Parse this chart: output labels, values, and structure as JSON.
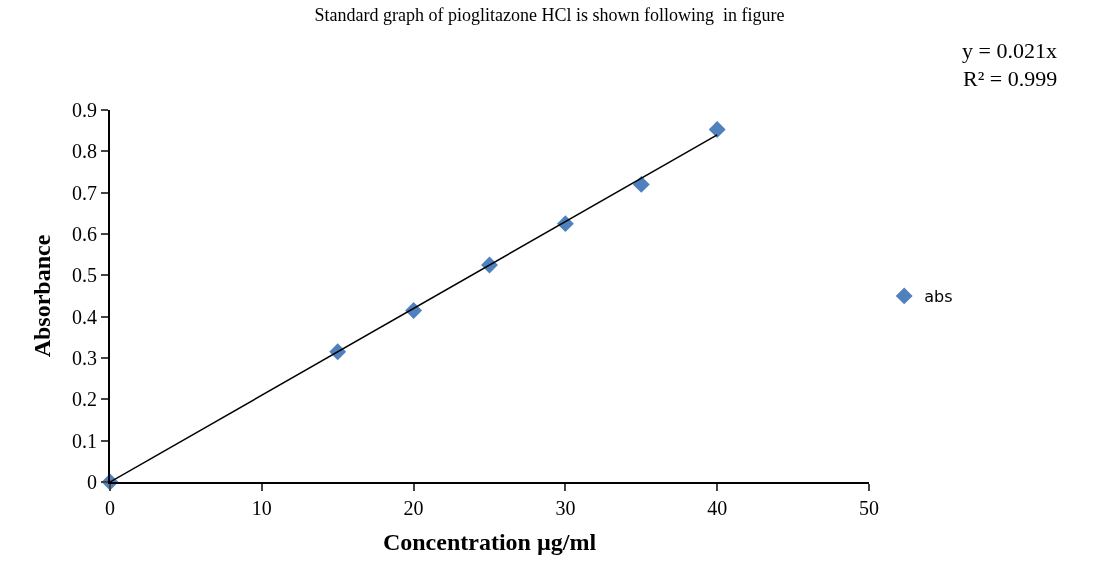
{
  "chart_data": {
    "type": "scatter",
    "title": "Standard graph of pioglitazone HCl is shown following  in figure",
    "xlabel": "Concentration µg/ml",
    "ylabel": "Absorbance",
    "x": [
      0,
      15,
      20,
      25,
      30,
      35,
      40
    ],
    "series": [
      {
        "name": "abs",
        "color": "#4f81bd",
        "marker": "diamond",
        "values": [
          0,
          0.315,
          0.415,
          0.525,
          0.625,
          0.72,
          0.853
        ]
      },
      {
        "type": "line",
        "color": "#000000",
        "x": [
          0,
          40
        ],
        "values": [
          0,
          0.84
        ]
      }
    ],
    "annotations": [
      "y = 0.021x",
      "R² = 0.999"
    ],
    "xlim": [
      0,
      50
    ],
    "xticks": [
      0,
      10,
      20,
      30,
      40,
      50
    ],
    "ylim": [
      0,
      0.9
    ],
    "yticks": [
      0,
      0.1,
      0.2,
      0.3,
      0.4,
      0.5,
      0.6,
      0.7,
      0.8,
      0.9
    ],
    "legend": "right"
  }
}
